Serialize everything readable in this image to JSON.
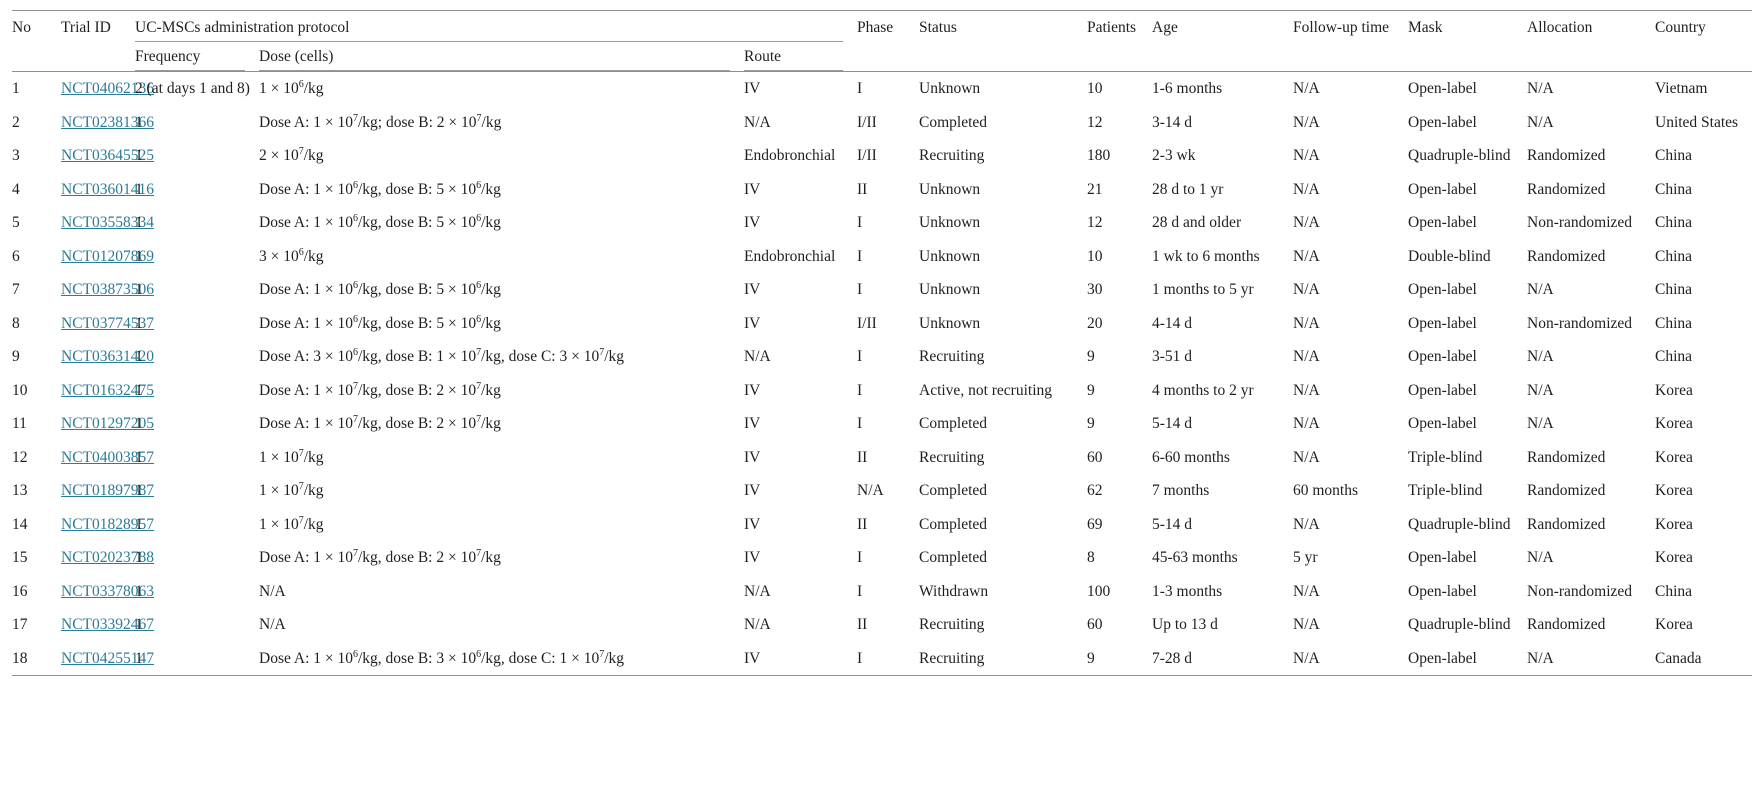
{
  "colors": {
    "link": "#2b7c99",
    "text": "#1f1f1f",
    "rule": "#8f8f8f"
  },
  "table": {
    "header": {
      "no": "No",
      "trial_id": "Trial ID",
      "protocol_group": "UC-MSCs administration protocol",
      "frequency": "Frequency",
      "dose": "Dose (cells)",
      "route": "Route",
      "phase": "Phase",
      "status": "Status",
      "patients": "Patients",
      "age": "Age",
      "follow_up": "Follow-up time",
      "mask": "Mask",
      "allocation": "Allocation",
      "country": "Country"
    },
    "rows": [
      {
        "no": "1",
        "trial_id": "NCT04062136",
        "frequency": "2 (at days 1 and 8)",
        "dose": "1 × 10^6/kg",
        "route": "IV",
        "phase": "I",
        "status": "Unknown",
        "patients": "10",
        "age": "1-6 months",
        "follow_up": "N/A",
        "mask": "Open-label",
        "allocation": "N/A",
        "country": "Vietnam"
      },
      {
        "no": "2",
        "trial_id": "NCT02381366",
        "frequency": "1",
        "dose": "Dose A: 1 × 10^7/kg; dose B: 2 × 10^7/kg",
        "route": "N/A",
        "phase": "I/II",
        "status": "Completed",
        "patients": "12",
        "age": "3-14 d",
        "follow_up": "N/A",
        "mask": "Open-label",
        "allocation": "N/A",
        "country": "United States"
      },
      {
        "no": "3",
        "trial_id": "NCT03645525",
        "frequency": "1",
        "dose": "2 × 10^7/kg",
        "route": "Endobronchial",
        "phase": "I/II",
        "status": "Recruiting",
        "patients": "180",
        "age": "2-3 wk",
        "follow_up": "N/A",
        "mask": "Quadruple-blind",
        "allocation": "Randomized",
        "country": "China"
      },
      {
        "no": "4",
        "trial_id": "NCT03601416",
        "frequency": "1",
        "dose": "Dose A: 1 × 10^6/kg, dose B: 5 × 10^6/kg",
        "route": "IV",
        "phase": "II",
        "status": "Unknown",
        "patients": "21",
        "age": "28 d to 1 yr",
        "follow_up": "N/A",
        "mask": "Open-label",
        "allocation": "Randomized",
        "country": "China"
      },
      {
        "no": "5",
        "trial_id": "NCT03558334",
        "frequency": "1",
        "dose": "Dose A: 1 × 10^6/kg, dose B: 5 × 10^6/kg",
        "route": "IV",
        "phase": "I",
        "status": "Unknown",
        "patients": "12",
        "age": "28 d and older",
        "follow_up": "N/A",
        "mask": "Open-label",
        "allocation": "Non-randomized",
        "country": "China"
      },
      {
        "no": "6",
        "trial_id": "NCT01207869",
        "frequency": "1",
        "dose": "3 × 10^6/kg",
        "route": "Endobronchial",
        "phase": "I",
        "status": "Unknown",
        "patients": "10",
        "age": "1 wk to 6 months",
        "follow_up": "N/A",
        "mask": "Double-blind",
        "allocation": "Randomized",
        "country": "China"
      },
      {
        "no": "7",
        "trial_id": "NCT03873506",
        "frequency": "1",
        "dose": "Dose A: 1 × 10^6/kg, dose B: 5 × 10^6/kg",
        "route": "IV",
        "phase": "I",
        "status": "Unknown",
        "patients": "30",
        "age": "1 months to 5 yr",
        "follow_up": "N/A",
        "mask": "Open-label",
        "allocation": "N/A",
        "country": "China"
      },
      {
        "no": "8",
        "trial_id": "NCT03774537",
        "frequency": "1",
        "dose": "Dose A: 1 × 10^6/kg, dose B: 5 × 10^6/kg",
        "route": "IV",
        "phase": "I/II",
        "status": "Unknown",
        "patients": "20",
        "age": "4-14 d",
        "follow_up": "N/A",
        "mask": "Open-label",
        "allocation": "Non-randomized",
        "country": "China"
      },
      {
        "no": "9",
        "trial_id": "NCT03631420",
        "frequency": "1",
        "dose": "Dose A: 3 × 10^6/kg, dose B: 1 × 10^7/kg, dose C: 3 × 10^7/kg",
        "route": "N/A",
        "phase": "I",
        "status": "Recruiting",
        "patients": "9",
        "age": "3-51 d",
        "follow_up": "N/A",
        "mask": "Open-label",
        "allocation": "N/A",
        "country": "China"
      },
      {
        "no": "10",
        "trial_id": "NCT01632475",
        "frequency": "1",
        "dose": "Dose A: 1 × 10^7/kg, dose B: 2 × 10^7/kg",
        "route": "IV",
        "phase": "I",
        "status": "Active, not recruiting",
        "patients": "9",
        "age": "4 months to 2 yr",
        "follow_up": "N/A",
        "mask": "Open-label",
        "allocation": "N/A",
        "country": "Korea"
      },
      {
        "no": "11",
        "trial_id": "NCT01297205",
        "frequency": "1",
        "dose": "Dose A: 1 × 10^7/kg, dose B: 2 × 10^7/kg",
        "route": "IV",
        "phase": "I",
        "status": "Completed",
        "patients": "9",
        "age": "5-14 d",
        "follow_up": "N/A",
        "mask": "Open-label",
        "allocation": "N/A",
        "country": "Korea"
      },
      {
        "no": "12",
        "trial_id": "NCT04003857",
        "frequency": "1",
        "dose": "1 × 10^7/kg",
        "route": "IV",
        "phase": "II",
        "status": "Recruiting",
        "patients": "60",
        "age": "6-60 months",
        "follow_up": "N/A",
        "mask": "Triple-blind",
        "allocation": "Randomized",
        "country": "Korea"
      },
      {
        "no": "13",
        "trial_id": "NCT01897987",
        "frequency": "1",
        "dose": "1 × 10^7/kg",
        "route": "IV",
        "phase": "N/A",
        "status": "Completed",
        "patients": "62",
        "age": "7 months",
        "follow_up": "60 months",
        "mask": "Triple-blind",
        "allocation": "Randomized",
        "country": "Korea"
      },
      {
        "no": "14",
        "trial_id": "NCT01828957",
        "frequency": "1",
        "dose": "1 × 10^7/kg",
        "route": "IV",
        "phase": "II",
        "status": "Completed",
        "patients": "69",
        "age": "5-14 d",
        "follow_up": "N/A",
        "mask": "Quadruple-blind",
        "allocation": "Randomized",
        "country": "Korea"
      },
      {
        "no": "15",
        "trial_id": "NCT02023788",
        "frequency": "1",
        "dose": "Dose A: 1 × 10^7/kg, dose B: 2 × 10^7/kg",
        "route": "IV",
        "phase": "I",
        "status": "Completed",
        "patients": "8",
        "age": "45-63 months",
        "follow_up": "5 yr",
        "mask": "Open-label",
        "allocation": "N/A",
        "country": "Korea"
      },
      {
        "no": "16",
        "trial_id": "NCT03378063",
        "frequency": "1",
        "dose": "N/A",
        "route": "N/A",
        "phase": "I",
        "status": "Withdrawn",
        "patients": "100",
        "age": "1-3 months",
        "follow_up": "N/A",
        "mask": "Open-label",
        "allocation": "Non-randomized",
        "country": "China"
      },
      {
        "no": "17",
        "trial_id": "NCT03392467",
        "frequency": "1",
        "dose": "N/A",
        "route": "N/A",
        "phase": "II",
        "status": "Recruiting",
        "patients": "60",
        "age": "Up to 13 d",
        "follow_up": "N/A",
        "mask": "Quadruple-blind",
        "allocation": "Randomized",
        "country": "Korea"
      },
      {
        "no": "18",
        "trial_id": "NCT04255147",
        "frequency": "1",
        "dose": "Dose A: 1 × 10^6/kg, dose B: 3 × 10^6/kg, dose C: 1 × 10^7/kg",
        "route": "IV",
        "phase": "I",
        "status": "Recruiting",
        "patients": "9",
        "age": "7-28 d",
        "follow_up": "N/A",
        "mask": "Open-label",
        "allocation": "N/A",
        "country": "Canada"
      }
    ]
  }
}
